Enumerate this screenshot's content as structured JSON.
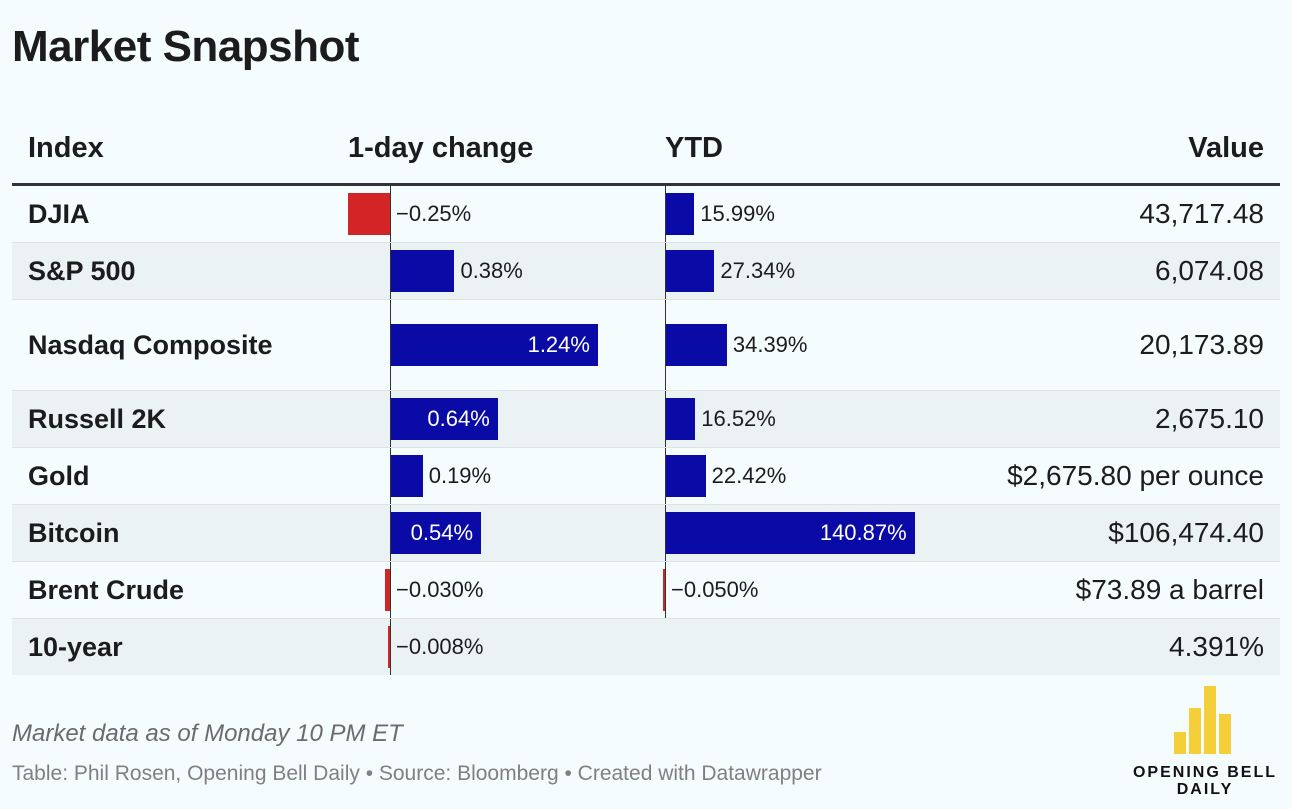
{
  "title": "Market Snapshot",
  "headers": {
    "index": "Index",
    "day": "1-day change",
    "ytd": "YTD",
    "value": "Value"
  },
  "colors": {
    "positive": "#0a0aa7",
    "negative": "#d32525",
    "logo": "#f5cf3a"
  },
  "chart_data": {
    "type": "table",
    "columns": [
      "Index",
      "1-day change",
      "YTD",
      "Value"
    ],
    "rows": [
      {
        "name": "DJIA",
        "day": -0.25,
        "day_label": "−0.25%",
        "ytd": 15.99,
        "ytd_label": "15.99%",
        "value": "43,717.48"
      },
      {
        "name": "S&P 500",
        "day": 0.38,
        "day_label": "0.38%",
        "ytd": 27.34,
        "ytd_label": "27.34%",
        "value": "6,074.08"
      },
      {
        "name": "Nasdaq Composite",
        "day": 1.24,
        "day_label": "1.24%",
        "ytd": 34.39,
        "ytd_label": "34.39%",
        "value": "20,173.89"
      },
      {
        "name": "Russell 2K",
        "day": 0.64,
        "day_label": "0.64%",
        "ytd": 16.52,
        "ytd_label": "16.52%",
        "value": "2,675.10"
      },
      {
        "name": "Gold",
        "day": 0.19,
        "day_label": "0.19%",
        "ytd": 22.42,
        "ytd_label": "22.42%",
        "value": "$2,675.80 per ounce"
      },
      {
        "name": "Bitcoin",
        "day": 0.54,
        "day_label": "0.54%",
        "ytd": 140.87,
        "ytd_label": "140.87%",
        "value": "$106,474.40"
      },
      {
        "name": "Brent Crude",
        "day": -0.03,
        "day_label": "−0.030%",
        "ytd": -0.05,
        "ytd_label": "−0.050%",
        "value": "$73.89 a barrel"
      },
      {
        "name": "10-year",
        "day": -0.008,
        "day_label": "−0.008%",
        "ytd": null,
        "ytd_label": "",
        "value": "4.391%"
      }
    ]
  },
  "footnote": "Market data as of Monday 10 PM ET",
  "credit": "Table: Phil Rosen, Opening Bell Daily • Source: Bloomberg • Created with Datawrapper",
  "logo": {
    "line1": "OPENING BELL",
    "line2": "DAILY"
  }
}
